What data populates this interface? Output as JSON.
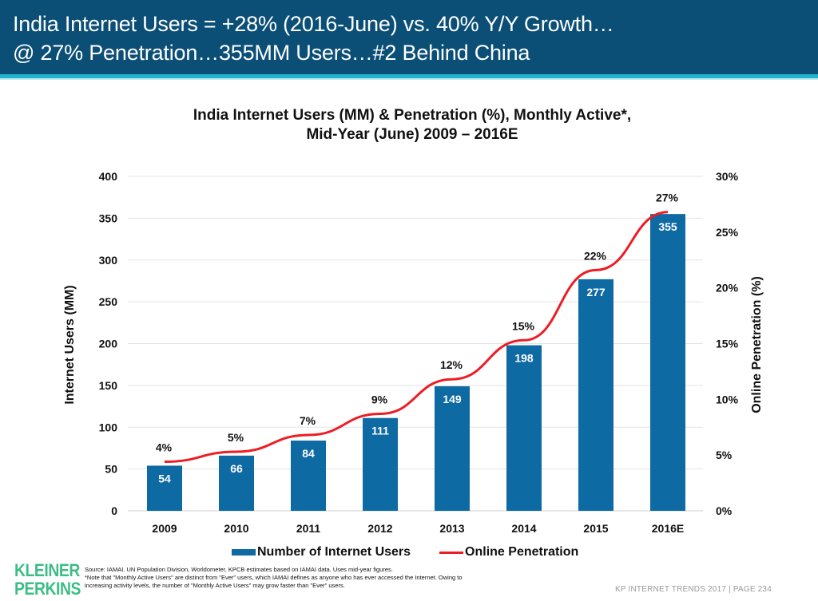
{
  "header": {
    "title_line1": "India Internet Users = +28% (2016-June) vs. 40% Y/Y Growth…",
    "title_line2": "@ 27% Penetration…355MM Users…#2 Behind China"
  },
  "colors": {
    "header_bg": "#0b4f76",
    "stripe": "#1fb3cc",
    "bar": "#0e6aa3",
    "line": "#ee1c24",
    "logo": "#3dbd86"
  },
  "chart_data": {
    "type": "bar",
    "title": "India Internet Users (MM) & Penetration (%), Monthly Active*,",
    "subtitle": "Mid-Year (June) 2009 – 2016E",
    "categories": [
      "2009",
      "2010",
      "2011",
      "2012",
      "2013",
      "2014",
      "2015",
      "2016E"
    ],
    "series": [
      {
        "name": "Number of Internet Users",
        "type": "bar",
        "axis": "left",
        "values": [
          54,
          66,
          84,
          111,
          149,
          198,
          277,
          355
        ],
        "labels": [
          "54",
          "66",
          "84",
          "111",
          "149",
          "198",
          "277",
          "355"
        ]
      },
      {
        "name": "Online Penetration",
        "type": "line",
        "axis": "right",
        "values": [
          4.4,
          5.3,
          6.8,
          8.7,
          11.8,
          15.3,
          21.6,
          26.8
        ],
        "labels": [
          "4%",
          "5%",
          "7%",
          "9%",
          "12%",
          "15%",
          "22%",
          "27%"
        ]
      }
    ],
    "ylabel": "Internet Users (MM)",
    "ylim": [
      0,
      400
    ],
    "yticks": [
      "0",
      "50",
      "100",
      "150",
      "200",
      "250",
      "300",
      "350",
      "400"
    ],
    "y2label": "Online Penetration (%)",
    "y2lim": [
      0,
      30
    ],
    "y2ticks": [
      "0%",
      "5%",
      "10%",
      "15%",
      "20%",
      "25%",
      "30%"
    ],
    "grid": true,
    "legend": "bottom"
  },
  "legend": {
    "bar_label": "Number of Internet Users",
    "line_label": "Online Penetration"
  },
  "footer": {
    "logo_line1": "KLEINER",
    "logo_line2": "PERKINS",
    "source_line1": "Source: IAMAI. UN Population Division, Worldometer, KPCB estimates based on IAMAI data. Uses mid-year figures.",
    "source_line2": "*Note that \"Monthly Active Users\" are distinct from \"Ever\" users, which IAMAI defines as anyone who has ever accessed the Internet. Owing to",
    "source_line3": "increasing activity levels, the number of \"Monthly Active Users\" may  grow faster than \"Ever\" users.",
    "page_ref": "KP INTERNET TRENDS 2017   |   PAGE 234"
  }
}
